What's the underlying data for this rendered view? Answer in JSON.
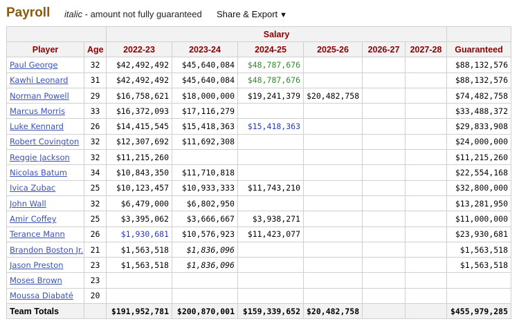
{
  "header": {
    "title": "Payroll",
    "legend_italic": "italic",
    "legend_text": " - amount not fully guaranteed",
    "share_label": "Share & Export",
    "share_caret": "▼"
  },
  "table": {
    "group_label": "Salary",
    "columns": [
      "Player",
      "Age",
      "2022-23",
      "2023-24",
      "2024-25",
      "2025-26",
      "2026-27",
      "2027-28",
      "Guaranteed"
    ],
    "rows": [
      {
        "player": "Paul George",
        "age": "32",
        "y1": "$42,492,492",
        "y2": "$45,640,084",
        "y3": "$48,787,676",
        "y3_color": "green",
        "y4": "",
        "y5": "",
        "y6": "",
        "guaranteed": "$88,132,576"
      },
      {
        "player": "Kawhi Leonard",
        "age": "31",
        "y1": "$42,492,492",
        "y2": "$45,640,084",
        "y3": "$48,787,676",
        "y3_color": "green",
        "y4": "",
        "y5": "",
        "y6": "",
        "guaranteed": "$88,132,576"
      },
      {
        "player": "Norman Powell",
        "age": "29",
        "y1": "$16,758,621",
        "y2": "$18,000,000",
        "y3": "$19,241,379",
        "y4": "$20,482,758",
        "y5": "",
        "y6": "",
        "guaranteed": "$74,482,758"
      },
      {
        "player": "Marcus Morris",
        "age": "33",
        "y1": "$16,372,093",
        "y2": "$17,116,279",
        "y3": "",
        "y4": "",
        "y5": "",
        "y6": "",
        "guaranteed": "$33,488,372"
      },
      {
        "player": "Luke Kennard",
        "age": "26",
        "y1": "$14,415,545",
        "y2": "$15,418,363",
        "y3": "$15,418,363",
        "y3_color": "blue",
        "y4": "",
        "y5": "",
        "y6": "",
        "guaranteed": "$29,833,908"
      },
      {
        "player": "Robert Covington",
        "age": "32",
        "y1": "$12,307,692",
        "y2": "$11,692,308",
        "y3": "",
        "y4": "",
        "y5": "",
        "y6": "",
        "guaranteed": "$24,000,000"
      },
      {
        "player": "Reggie Jackson",
        "age": "32",
        "y1": "$11,215,260",
        "y2": "",
        "y3": "",
        "y4": "",
        "y5": "",
        "y6": "",
        "guaranteed": "$11,215,260"
      },
      {
        "player": "Nicolas Batum",
        "age": "34",
        "y1": "$10,843,350",
        "y2": "$11,710,818",
        "y3": "",
        "y4": "",
        "y5": "",
        "y6": "",
        "guaranteed": "$22,554,168"
      },
      {
        "player": "Ivica Zubac",
        "age": "25",
        "y1": "$10,123,457",
        "y2": "$10,933,333",
        "y3": "$11,743,210",
        "y4": "",
        "y5": "",
        "y6": "",
        "guaranteed": "$32,800,000"
      },
      {
        "player": "John Wall",
        "age": "32",
        "y1": "$6,479,000",
        "y2": "$6,802,950",
        "y3": "",
        "y4": "",
        "y5": "",
        "y6": "",
        "guaranteed": "$13,281,950"
      },
      {
        "player": "Amir Coffey",
        "age": "25",
        "y1": "$3,395,062",
        "y2": "$3,666,667",
        "y3": "$3,938,271",
        "y4": "",
        "y5": "",
        "y6": "",
        "guaranteed": "$11,000,000"
      },
      {
        "player": "Terance Mann",
        "age": "26",
        "y1": "$1,930,681",
        "y1_color": "blue",
        "y2": "$10,576,923",
        "y3": "$11,423,077",
        "y4": "",
        "y5": "",
        "y6": "",
        "guaranteed": "$23,930,681"
      },
      {
        "player": "Brandon Boston Jr.",
        "age": "21",
        "y1": "$1,563,518",
        "y2": "$1,836,096",
        "y2_italic": true,
        "y3": "",
        "y4": "",
        "y5": "",
        "y6": "",
        "guaranteed": "$1,563,518"
      },
      {
        "player": "Jason Preston",
        "age": "23",
        "y1": "$1,563,518",
        "y2": "$1,836,096",
        "y2_italic": true,
        "y3": "",
        "y4": "",
        "y5": "",
        "y6": "",
        "guaranteed": "$1,563,518"
      },
      {
        "player": "Moses Brown",
        "age": "23",
        "y1": "",
        "y2": "",
        "y3": "",
        "y4": "",
        "y5": "",
        "y6": "",
        "guaranteed": ""
      },
      {
        "player": "Moussa Diabaté",
        "age": "20",
        "y1": "",
        "y2": "",
        "y3": "",
        "y4": "",
        "y5": "",
        "y6": "",
        "guaranteed": ""
      }
    ],
    "totals": {
      "label": "Team Totals",
      "age": "",
      "y1": "$191,952,781",
      "y2": "$200,870,001",
      "y3": "$159,339,652",
      "y4": "$20,482,758",
      "y5": "",
      "y6": "",
      "guaranteed": "$455,979,285"
    }
  },
  "colors": {
    "title": "#8a5a10",
    "header_text": "#8b0000",
    "link": "#3a52b6",
    "option_green": "#2e8b2e",
    "option_blue": "#2838c0"
  }
}
